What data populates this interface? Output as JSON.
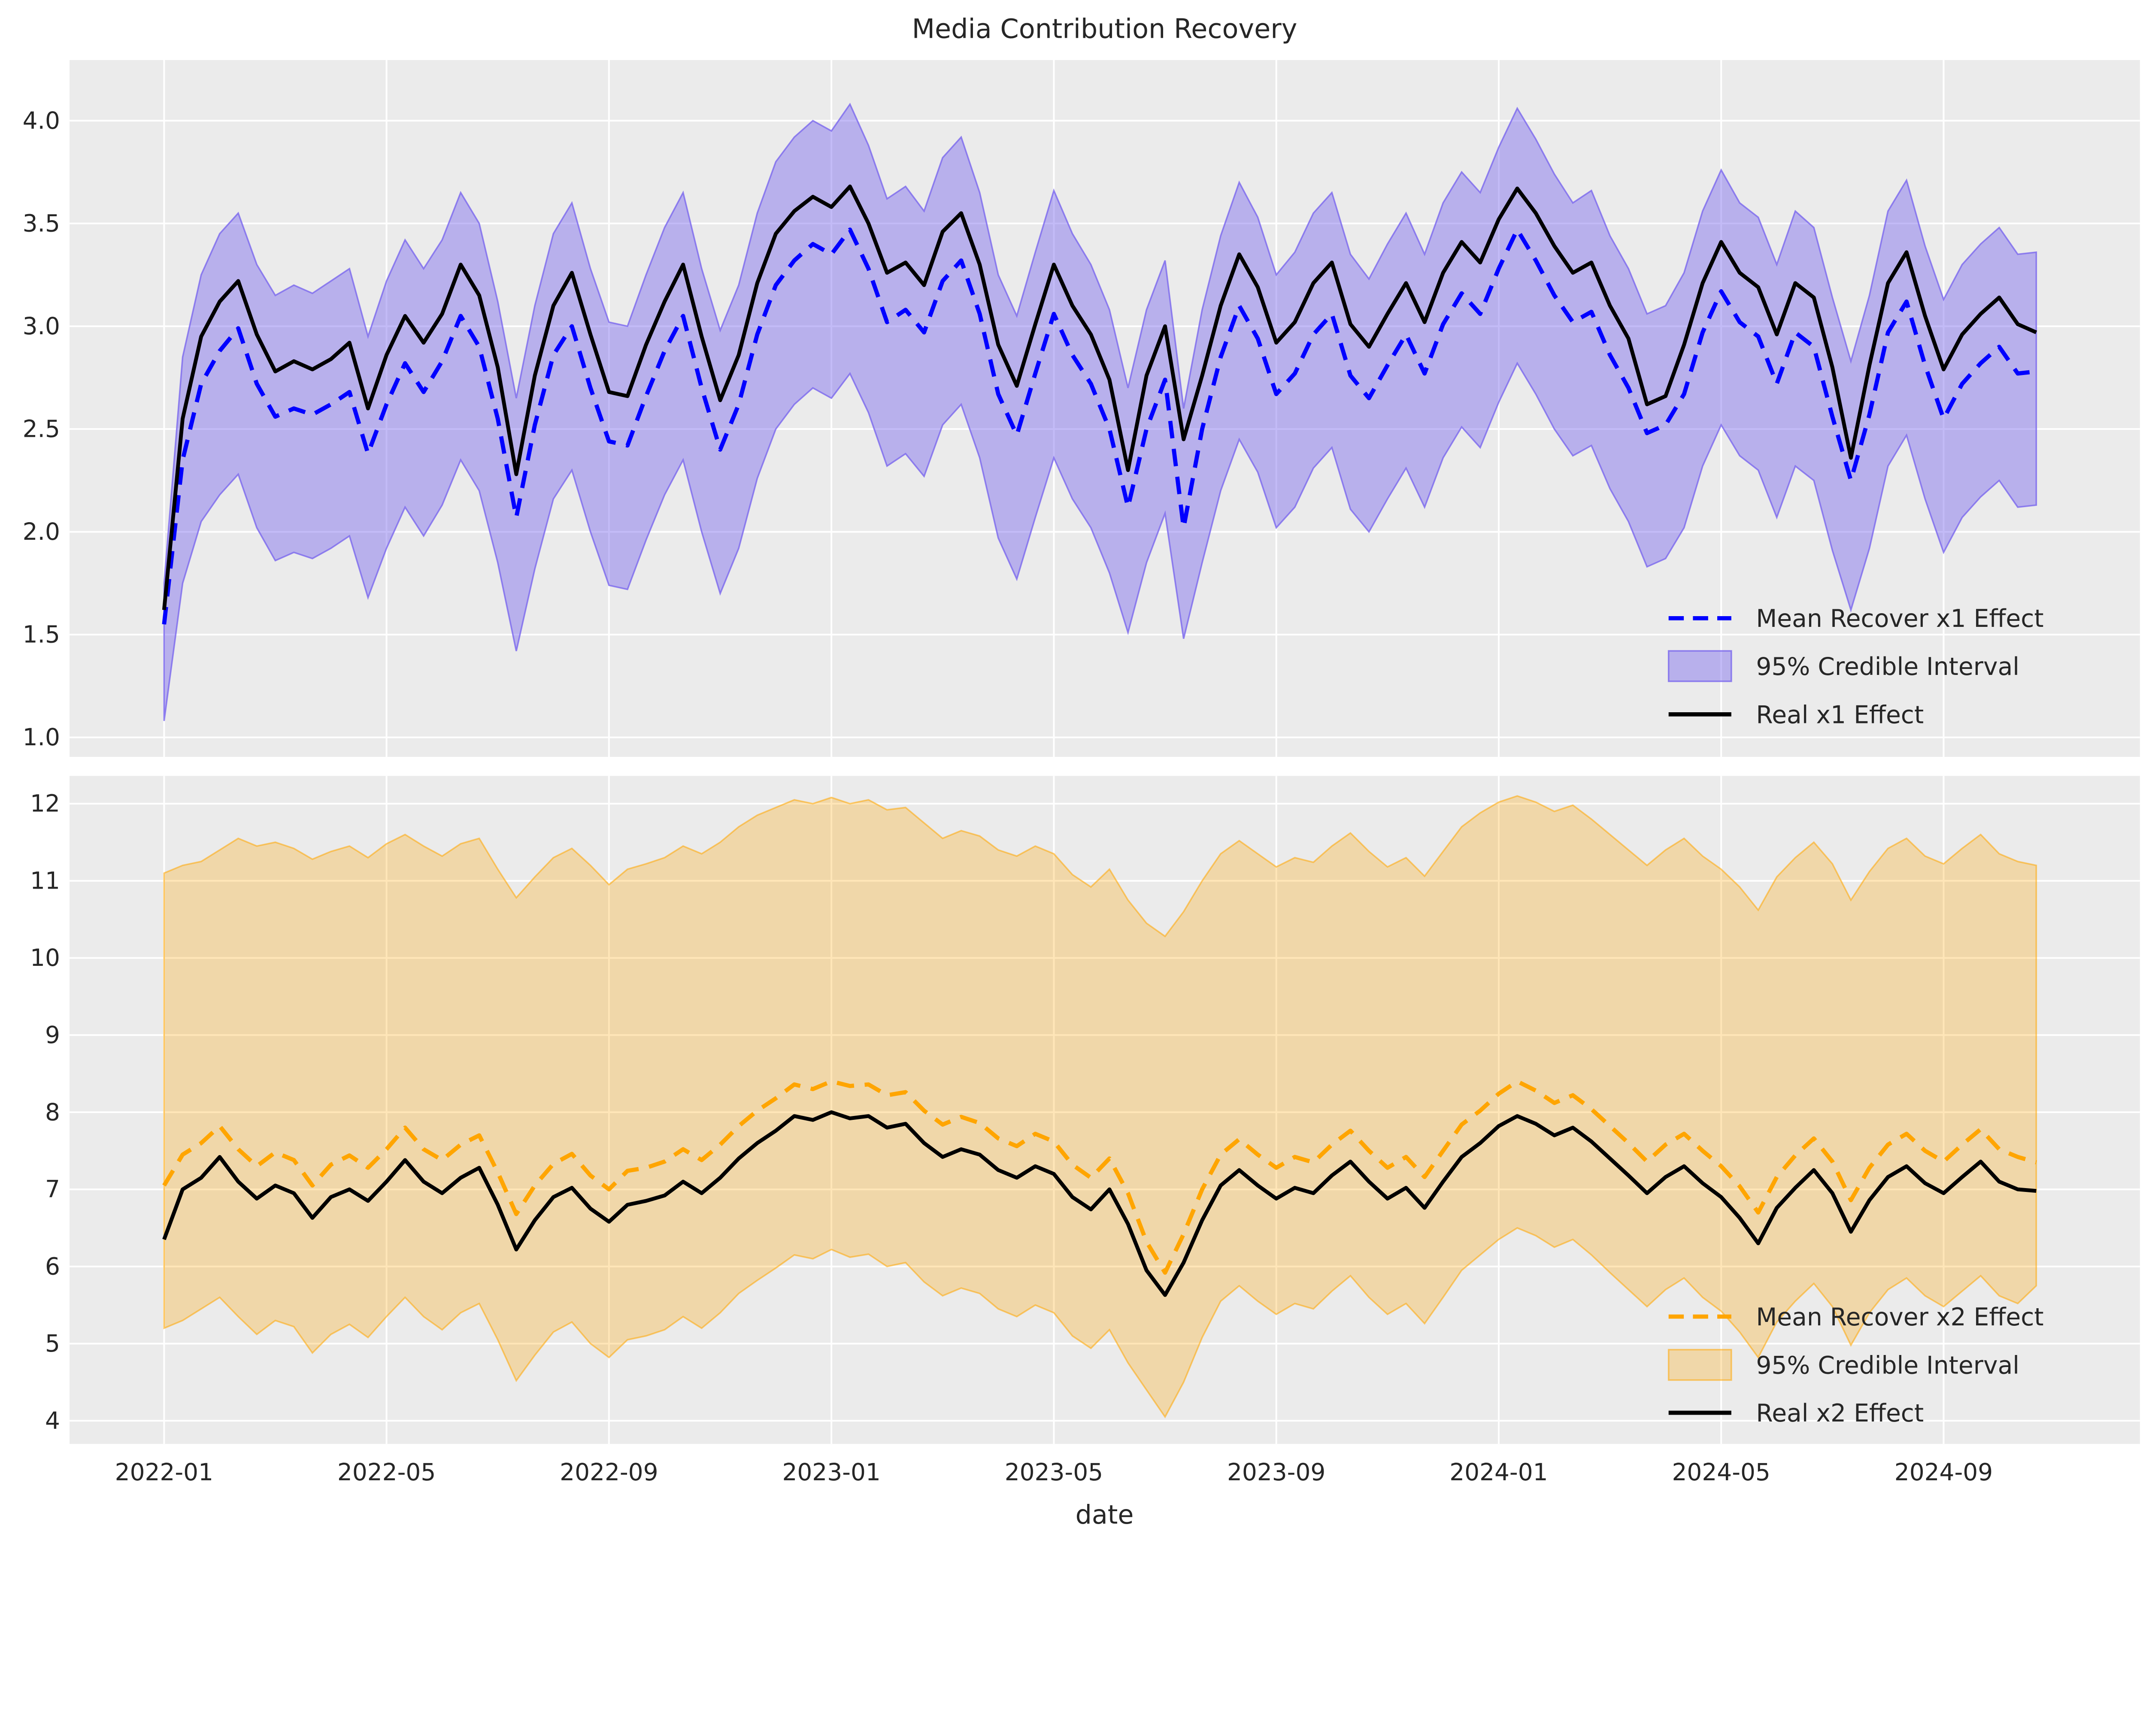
{
  "title": "Media Contribution Recovery",
  "xlabel": "date",
  "colors": {
    "figure_bg": "#ffffff",
    "axes_bg": "#ebebeb",
    "grid": "#ffffff",
    "text": "#262626",
    "x1_mean": "#0000ff",
    "x1_band_fill": "rgba(123,104,238,0.45)",
    "x1_band_edge": "rgba(123,104,238,0.8)",
    "x2_mean": "#ffa500",
    "x2_band_fill": "rgba(255,165,0,0.28)",
    "x2_band_edge": "rgba(255,165,0,0.55)",
    "real": "#000000"
  },
  "chart_data": [
    {
      "type": "line",
      "name": "x1-effect-panel",
      "x_unit": "months since 2022-01",
      "x_start_month": 0,
      "x_step_months": 0.33333,
      "xlim_months": [
        -1.7,
        35.53
      ],
      "xticks_months": [
        0,
        4,
        8,
        12,
        16,
        20,
        24,
        28,
        32
      ],
      "xtick_labels": [
        "2022-01",
        "2022-05",
        "2022-09",
        "2023-01",
        "2023-05",
        "2023-09",
        "2024-01",
        "2024-05",
        "2024-09"
      ],
      "show_x_tick_labels": false,
      "ylim": [
        0.905,
        4.295
      ],
      "yticks": [
        1.0,
        1.5,
        2.0,
        2.5,
        3.0,
        3.5,
        4.0
      ],
      "ytick_labels": [
        "1.0",
        "1.5",
        "2.0",
        "2.5",
        "3.0",
        "3.5",
        "4.0"
      ],
      "legend": [
        "Mean Recover x1 Effect",
        "95% Credible Interval",
        "Real x1 Effect"
      ],
      "band": {
        "label": "95% Credible Interval",
        "fill_key": "x1_band_fill",
        "edge_key": "x1_band_edge",
        "upper": [
          1.75,
          2.85,
          3.25,
          3.45,
          3.55,
          3.3,
          3.15,
          3.2,
          3.16,
          3.22,
          3.28,
          2.95,
          3.22,
          3.42,
          3.28,
          3.42,
          3.65,
          3.5,
          3.12,
          2.65,
          3.1,
          3.45,
          3.6,
          3.28,
          3.02,
          3.0,
          3.25,
          3.48,
          3.65,
          3.28,
          2.98,
          3.2,
          3.55,
          3.8,
          3.92,
          4.0,
          3.95,
          4.08,
          3.88,
          3.62,
          3.68,
          3.56,
          3.82,
          3.92,
          3.65,
          3.25,
          3.05,
          3.36,
          3.66,
          3.45,
          3.3,
          3.08,
          2.7,
          3.08,
          3.32,
          2.6,
          3.08,
          3.44,
          3.7,
          3.53,
          3.25,
          3.36,
          3.55,
          3.65,
          3.35,
          3.23,
          3.4,
          3.55,
          3.35,
          3.6,
          3.75,
          3.65,
          3.87,
          4.06,
          3.91,
          3.74,
          3.6,
          3.66,
          3.44,
          3.28,
          3.06,
          3.1,
          3.26,
          3.56,
          3.76,
          3.6,
          3.53,
          3.3,
          3.56,
          3.48,
          3.14,
          2.83,
          3.15,
          3.56,
          3.71,
          3.39,
          3.13,
          3.3,
          3.4,
          3.48,
          3.35,
          3.36
        ],
        "lower": [
          1.08,
          1.75,
          2.05,
          2.18,
          2.28,
          2.02,
          1.86,
          1.9,
          1.87,
          1.92,
          1.98,
          1.68,
          1.92,
          2.12,
          1.98,
          2.13,
          2.35,
          2.2,
          1.85,
          1.42,
          1.82,
          2.16,
          2.3,
          2.0,
          1.74,
          1.72,
          1.96,
          2.18,
          2.35,
          2.0,
          1.7,
          1.92,
          2.26,
          2.5,
          2.62,
          2.7,
          2.65,
          2.77,
          2.58,
          2.32,
          2.38,
          2.27,
          2.52,
          2.62,
          2.36,
          1.97,
          1.77,
          2.07,
          2.36,
          2.16,
          2.02,
          1.8,
          1.51,
          1.85,
          2.09,
          1.48,
          1.85,
          2.2,
          2.45,
          2.29,
          2.02,
          2.12,
          2.31,
          2.41,
          2.11,
          2.0,
          2.16,
          2.31,
          2.12,
          2.36,
          2.51,
          2.41,
          2.63,
          2.82,
          2.67,
          2.5,
          2.37,
          2.42,
          2.21,
          2.05,
          1.83,
          1.87,
          2.02,
          2.32,
          2.52,
          2.37,
          2.3,
          2.07,
          2.32,
          2.25,
          1.91,
          1.62,
          1.92,
          2.32,
          2.47,
          2.16,
          1.9,
          2.07,
          2.17,
          2.25,
          2.12,
          2.13
        ]
      },
      "series": [
        {
          "name": "Mean Recover x1 Effect",
          "style": "dashed",
          "color_key": "x1_mean",
          "values": [
            1.55,
            2.35,
            2.72,
            2.88,
            2.99,
            2.72,
            2.56,
            2.6,
            2.57,
            2.62,
            2.68,
            2.38,
            2.62,
            2.82,
            2.68,
            2.83,
            3.05,
            2.9,
            2.55,
            2.07,
            2.52,
            2.86,
            3.0,
            2.7,
            2.44,
            2.42,
            2.66,
            2.88,
            3.05,
            2.7,
            2.4,
            2.62,
            2.96,
            3.2,
            3.32,
            3.4,
            3.35,
            3.47,
            3.28,
            3.02,
            3.08,
            2.97,
            3.22,
            3.32,
            3.06,
            2.67,
            2.47,
            2.77,
            3.06,
            2.86,
            2.72,
            2.5,
            2.12,
            2.5,
            2.74,
            2.02,
            2.5,
            2.85,
            3.1,
            2.94,
            2.67,
            2.77,
            2.96,
            3.06,
            2.76,
            2.65,
            2.81,
            2.96,
            2.77,
            3.01,
            3.16,
            3.06,
            3.28,
            3.47,
            3.32,
            3.15,
            3.02,
            3.07,
            2.86,
            2.7,
            2.48,
            2.52,
            2.67,
            2.97,
            3.17,
            3.02,
            2.95,
            2.72,
            2.97,
            2.9,
            2.56,
            2.25,
            2.57,
            2.97,
            3.12,
            2.81,
            2.55,
            2.72,
            2.82,
            2.9,
            2.77,
            2.78
          ]
        },
        {
          "name": "Real x1 Effect",
          "style": "solid",
          "color_key": "real",
          "values": [
            1.62,
            2.55,
            2.95,
            3.12,
            3.22,
            2.96,
            2.78,
            2.83,
            2.79,
            2.84,
            2.92,
            2.6,
            2.86,
            3.05,
            2.92,
            3.06,
            3.3,
            3.15,
            2.8,
            2.28,
            2.76,
            3.1,
            3.26,
            2.96,
            2.68,
            2.66,
            2.91,
            3.12,
            3.3,
            2.95,
            2.64,
            2.86,
            3.21,
            3.45,
            3.56,
            3.63,
            3.58,
            3.68,
            3.5,
            3.26,
            3.31,
            3.2,
            3.46,
            3.55,
            3.3,
            2.91,
            2.71,
            3.01,
            3.3,
            3.1,
            2.96,
            2.74,
            2.3,
            2.76,
            3.0,
            2.45,
            2.76,
            3.1,
            3.35,
            3.19,
            2.92,
            3.02,
            3.21,
            3.31,
            3.01,
            2.9,
            3.06,
            3.21,
            3.02,
            3.26,
            3.41,
            3.31,
            3.52,
            3.67,
            3.55,
            3.39,
            3.26,
            3.31,
            3.1,
            2.94,
            2.62,
            2.66,
            2.91,
            3.21,
            3.41,
            3.26,
            3.19,
            2.96,
            3.21,
            3.14,
            2.8,
            2.36,
            2.81,
            3.21,
            3.36,
            3.05,
            2.79,
            2.96,
            3.06,
            3.14,
            3.01,
            2.97
          ]
        }
      ]
    },
    {
      "type": "line",
      "name": "x2-effect-panel",
      "x_unit": "months since 2022-01",
      "x_start_month": 0,
      "x_step_months": 0.33333,
      "xlim_months": [
        -1.7,
        35.53
      ],
      "xticks_months": [
        0,
        4,
        8,
        12,
        16,
        20,
        24,
        28,
        32
      ],
      "xtick_labels": [
        "2022-01",
        "2022-05",
        "2022-09",
        "2023-01",
        "2023-05",
        "2023-09",
        "2024-01",
        "2024-05",
        "2024-09"
      ],
      "show_x_tick_labels": true,
      "ylim": [
        3.7,
        12.36
      ],
      "yticks": [
        4,
        5,
        6,
        7,
        8,
        9,
        10,
        11,
        12
      ],
      "ytick_labels": [
        "4",
        "5",
        "6",
        "7",
        "8",
        "9",
        "10",
        "11",
        "12"
      ],
      "legend": [
        "Mean Recover x2 Effect",
        "95% Credible Interval",
        "Real x2 Effect"
      ],
      "band": {
        "label": "95% Credible Interval",
        "fill_key": "x2_band_fill",
        "edge_key": "x2_band_edge",
        "upper": [
          11.1,
          11.2,
          11.25,
          11.4,
          11.55,
          11.45,
          11.5,
          11.42,
          11.28,
          11.38,
          11.45,
          11.3,
          11.48,
          11.6,
          11.45,
          11.32,
          11.48,
          11.55,
          11.15,
          10.78,
          11.05,
          11.3,
          11.42,
          11.2,
          10.95,
          11.15,
          11.22,
          11.3,
          11.45,
          11.35,
          11.5,
          11.7,
          11.85,
          11.95,
          12.05,
          12.0,
          12.08,
          12.0,
          12.05,
          11.92,
          11.95,
          11.75,
          11.55,
          11.65,
          11.58,
          11.4,
          11.32,
          11.45,
          11.35,
          11.08,
          10.92,
          11.15,
          10.75,
          10.45,
          10.28,
          10.6,
          11.0,
          11.35,
          11.52,
          11.35,
          11.18,
          11.3,
          11.24,
          11.45,
          11.62,
          11.38,
          11.18,
          11.3,
          11.06,
          11.38,
          11.7,
          11.88,
          12.02,
          12.1,
          12.02,
          11.9,
          11.98,
          11.8,
          11.6,
          11.4,
          11.2,
          11.4,
          11.55,
          11.32,
          11.15,
          10.92,
          10.62,
          11.05,
          11.3,
          11.5,
          11.22,
          10.75,
          11.12,
          11.42,
          11.55,
          11.32,
          11.22,
          11.42,
          11.6,
          11.35,
          11.25,
          11.2
        ],
        "lower": [
          5.2,
          5.3,
          5.45,
          5.6,
          5.35,
          5.12,
          5.3,
          5.22,
          4.88,
          5.12,
          5.25,
          5.08,
          5.35,
          5.6,
          5.35,
          5.18,
          5.4,
          5.52,
          5.05,
          4.52,
          4.85,
          5.15,
          5.28,
          5.0,
          4.82,
          5.05,
          5.1,
          5.18,
          5.35,
          5.2,
          5.4,
          5.65,
          5.82,
          5.98,
          6.15,
          6.1,
          6.22,
          6.12,
          6.16,
          6.0,
          6.05,
          5.8,
          5.62,
          5.72,
          5.65,
          5.45,
          5.35,
          5.5,
          5.4,
          5.1,
          4.94,
          5.18,
          4.75,
          4.4,
          4.05,
          4.5,
          5.08,
          5.55,
          5.75,
          5.55,
          5.38,
          5.52,
          5.45,
          5.68,
          5.88,
          5.6,
          5.38,
          5.52,
          5.26,
          5.6,
          5.95,
          6.15,
          6.35,
          6.5,
          6.4,
          6.25,
          6.35,
          6.15,
          5.92,
          5.7,
          5.48,
          5.7,
          5.85,
          5.6,
          5.42,
          5.15,
          4.82,
          5.28,
          5.55,
          5.78,
          5.48,
          4.98,
          5.4,
          5.7,
          5.85,
          5.62,
          5.48,
          5.68,
          5.88,
          5.62,
          5.52,
          5.75
        ]
      },
      "series": [
        {
          "name": "Mean Recover x2 Effect",
          "style": "dashed",
          "color_key": "x2_mean",
          "values": [
            7.05,
            7.45,
            7.6,
            7.82,
            7.52,
            7.3,
            7.48,
            7.38,
            7.05,
            7.32,
            7.44,
            7.28,
            7.52,
            7.8,
            7.52,
            7.38,
            7.58,
            7.7,
            7.22,
            6.68,
            7.05,
            7.33,
            7.46,
            7.18,
            7.0,
            7.24,
            7.28,
            7.36,
            7.52,
            7.38,
            7.58,
            7.82,
            8.02,
            8.18,
            8.36,
            8.3,
            8.4,
            8.34,
            8.36,
            8.22,
            8.26,
            8.02,
            7.84,
            7.94,
            7.86,
            7.66,
            7.56,
            7.72,
            7.62,
            7.32,
            7.15,
            7.4,
            6.95,
            6.32,
            5.92,
            6.42,
            7.0,
            7.45,
            7.65,
            7.45,
            7.28,
            7.42,
            7.35,
            7.58,
            7.76,
            7.5,
            7.28,
            7.42,
            7.16,
            7.5,
            7.84,
            8.02,
            8.24,
            8.4,
            8.28,
            8.12,
            8.22,
            8.04,
            7.82,
            7.6,
            7.36,
            7.58,
            7.72,
            7.5,
            7.3,
            7.04,
            6.7,
            7.16,
            7.44,
            7.66,
            7.36,
            6.86,
            7.28,
            7.58,
            7.72,
            7.5,
            7.36,
            7.58,
            7.78,
            7.52,
            7.42,
            7.35
          ]
        },
        {
          "name": "Real x2 Effect",
          "style": "solid",
          "color_key": "real",
          "values": [
            6.35,
            7.0,
            7.15,
            7.42,
            7.1,
            6.88,
            7.05,
            6.95,
            6.63,
            6.9,
            7.0,
            6.85,
            7.1,
            7.38,
            7.1,
            6.95,
            7.15,
            7.28,
            6.8,
            6.22,
            6.6,
            6.9,
            7.02,
            6.75,
            6.58,
            6.8,
            6.85,
            6.92,
            7.1,
            6.95,
            7.15,
            7.4,
            7.6,
            7.76,
            7.95,
            7.9,
            8.0,
            7.92,
            7.95,
            7.8,
            7.85,
            7.6,
            7.42,
            7.52,
            7.45,
            7.25,
            7.15,
            7.3,
            7.2,
            6.9,
            6.74,
            7.0,
            6.55,
            5.95,
            5.63,
            6.05,
            6.6,
            7.05,
            7.25,
            7.05,
            6.88,
            7.02,
            6.95,
            7.18,
            7.36,
            7.1,
            6.88,
            7.02,
            6.76,
            7.1,
            7.42,
            7.6,
            7.82,
            7.95,
            7.85,
            7.7,
            7.8,
            7.62,
            7.4,
            7.18,
            6.95,
            7.16,
            7.3,
            7.08,
            6.9,
            6.63,
            6.3,
            6.76,
            7.02,
            7.25,
            6.95,
            6.45,
            6.86,
            7.16,
            7.3,
            7.08,
            6.95,
            7.16,
            7.36,
            7.1,
            7.0,
            6.98
          ]
        }
      ]
    }
  ]
}
